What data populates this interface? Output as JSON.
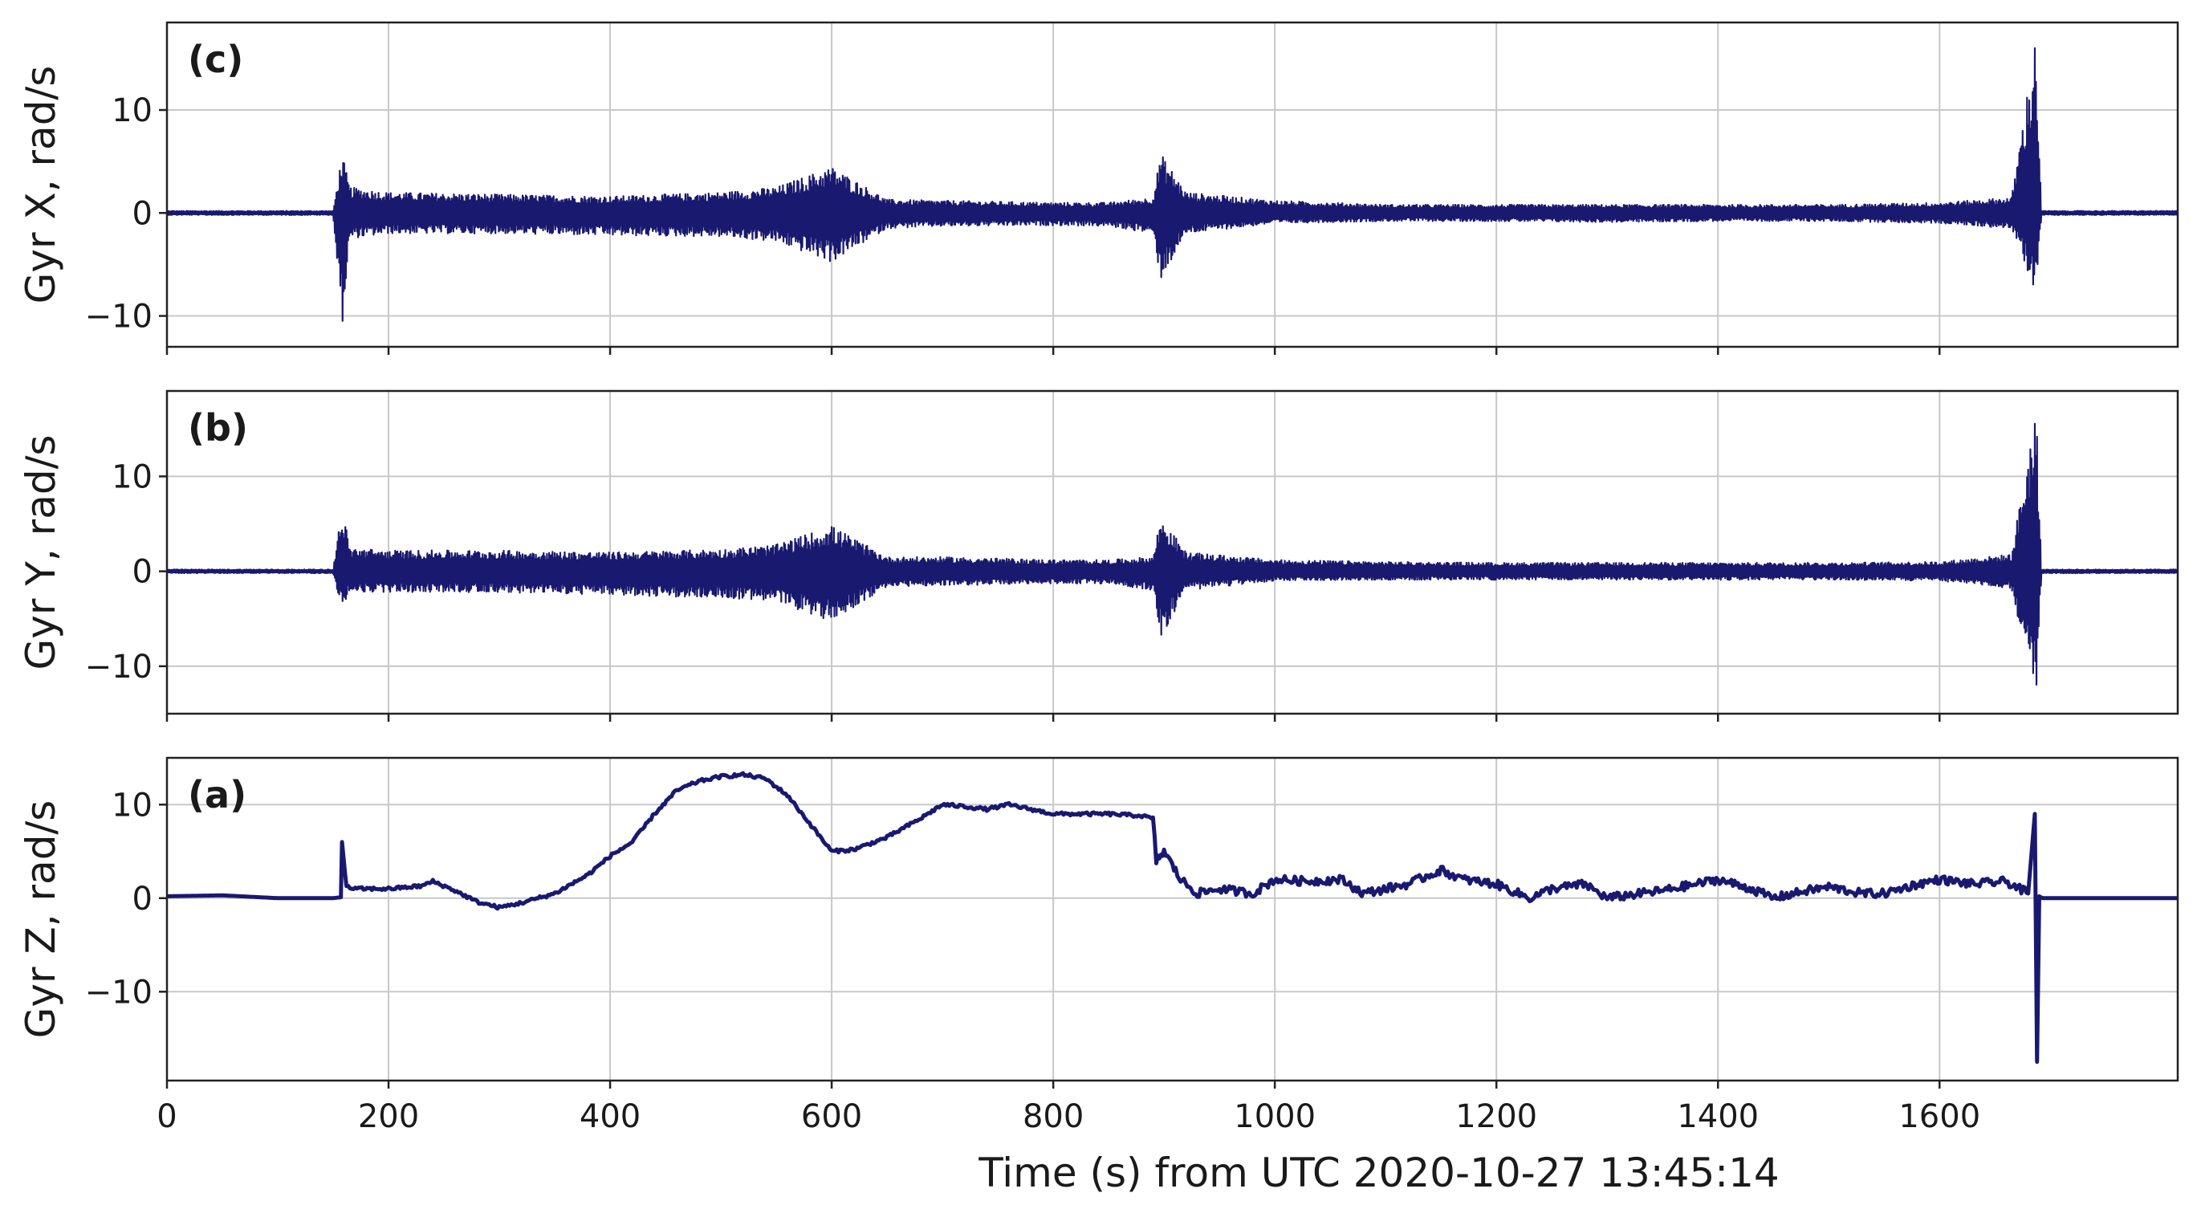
{
  "figure": {
    "xlabel": "Time (s) from UTC 2020-10-27 13:45:14",
    "x_ticks": [
      0,
      200,
      400,
      600,
      800,
      1000,
      1200,
      1400,
      1600
    ],
    "x_tick_labels": [
      "0",
      "200",
      "400",
      "600",
      "800",
      "1000",
      "1200",
      "1400",
      "1600"
    ],
    "line_color": "#191970",
    "grid": true
  },
  "chart_data": [
    {
      "type": "line",
      "panel_label": "(c)",
      "ylabel": "Gyr X, rad/s",
      "xlim": [
        0,
        1815
      ],
      "ylim": [
        -13,
        18.5
      ],
      "y_ticks": [
        -10,
        0,
        10
      ],
      "y_tick_labels": [
        "−10",
        "0",
        "10"
      ],
      "series": [
        {
          "envelope_x": [
            0,
            150,
            158,
            165,
            200,
            300,
            400,
            500,
            550,
            600,
            650,
            700,
            800,
            850,
            890,
            897,
            920,
            1000,
            1100,
            1200,
            1300,
            1400,
            1500,
            1600,
            1665,
            1687,
            1692,
            1700,
            1815
          ],
          "envelope_upper": [
            0.2,
            0.2,
            5.8,
            2.5,
            2.0,
            1.8,
            1.6,
            2.0,
            2.5,
            4.5,
            1.3,
            1.2,
            1.0,
            1.0,
            1.5,
            5.8,
            2.0,
            1.2,
            0.8,
            0.8,
            0.8,
            0.8,
            0.8,
            1.0,
            1.5,
            17.5,
            0.2,
            0.2,
            0.2
          ],
          "envelope_lower": [
            -0.2,
            -0.2,
            -11.2,
            -2.5,
            -2.0,
            -2.0,
            -2.2,
            -2.3,
            -2.8,
            -4.8,
            -1.5,
            -1.3,
            -1.2,
            -1.3,
            -2.0,
            -6.5,
            -2.0,
            -1.0,
            -0.8,
            -0.8,
            -0.9,
            -0.8,
            -0.8,
            -1.0,
            -1.5,
            -7.8,
            -0.2,
            -0.2,
            -0.2
          ]
        }
      ]
    },
    {
      "type": "line",
      "panel_label": "(b)",
      "ylabel": "Gyr Y, rad/s",
      "xlim": [
        0,
        1815
      ],
      "ylim": [
        -15,
        19
      ],
      "y_ticks": [
        -10,
        0,
        10
      ],
      "y_tick_labels": [
        "−10",
        "0",
        "10"
      ],
      "series": [
        {
          "envelope_x": [
            0,
            150,
            158,
            165,
            200,
            300,
            400,
            500,
            550,
            600,
            650,
            700,
            800,
            850,
            890,
            897,
            920,
            1000,
            1100,
            1200,
            1300,
            1400,
            1500,
            1600,
            1665,
            1687,
            1692,
            1700,
            1815
          ],
          "envelope_upper": [
            0.2,
            0.2,
            7.0,
            2.5,
            2.2,
            2.2,
            2.0,
            2.3,
            2.8,
            4.8,
            1.5,
            1.5,
            1.2,
            1.2,
            1.5,
            5.8,
            2.0,
            1.2,
            1.0,
            0.9,
            0.9,
            0.9,
            0.9,
            1.0,
            1.8,
            17.8,
            0.2,
            0.2,
            0.2
          ],
          "envelope_lower": [
            -0.2,
            -0.2,
            -4.0,
            -2.2,
            -2.2,
            -2.2,
            -2.5,
            -2.8,
            -3.2,
            -5.3,
            -1.6,
            -1.5,
            -1.3,
            -1.3,
            -2.0,
            -7.0,
            -2.0,
            -1.0,
            -0.9,
            -0.9,
            -0.9,
            -0.9,
            -0.9,
            -1.0,
            -1.8,
            -13.8,
            -0.2,
            -0.2,
            -0.2
          ]
        }
      ]
    },
    {
      "type": "line",
      "panel_label": "(a)",
      "ylabel": "Gyr Z, rad/s",
      "xlim": [
        0,
        1815
      ],
      "ylim": [
        -19.5,
        15
      ],
      "y_ticks": [
        -10,
        0,
        10
      ],
      "y_tick_labels": [
        "−10",
        "0",
        "10"
      ],
      "series": [
        {
          "x": [
            0,
            50,
            100,
            150,
            157,
            158,
            162,
            170,
            200,
            230,
            240,
            260,
            280,
            300,
            320,
            350,
            380,
            400,
            420,
            440,
            460,
            480,
            500,
            520,
            540,
            560,
            580,
            600,
            620,
            650,
            680,
            700,
            720,
            740,
            760,
            780,
            800,
            820,
            850,
            880,
            890,
            893,
            900,
            915,
            930,
            950,
            980,
            1000,
            1030,
            1060,
            1080,
            1100,
            1120,
            1150,
            1170,
            1200,
            1230,
            1250,
            1280,
            1300,
            1330,
            1350,
            1380,
            1400,
            1430,
            1450,
            1480,
            1500,
            1530,
            1550,
            1580,
            1600,
            1630,
            1660,
            1680,
            1686,
            1688,
            1690,
            1693,
            1700,
            1815
          ],
          "y": [
            0.2,
            0.3,
            0.0,
            0.0,
            0.1,
            6.0,
            1.2,
            1.0,
            1.0,
            1.3,
            1.8,
            0.8,
            -0.4,
            -1.0,
            -0.5,
            0.5,
            2.5,
            4.5,
            6.0,
            9.0,
            11.5,
            12.5,
            13.0,
            13.2,
            12.8,
            11.0,
            8.0,
            5.0,
            5.2,
            6.5,
            8.5,
            10.0,
            9.8,
            9.5,
            10.0,
            9.5,
            9.0,
            9.0,
            9.0,
            8.8,
            8.5,
            4.0,
            5.0,
            2.0,
            0.5,
            1.0,
            0.5,
            2.0,
            1.8,
            2.0,
            0.5,
            1.0,
            1.5,
            3.0,
            2.0,
            1.5,
            0.0,
            1.0,
            1.5,
            0.0,
            0.5,
            0.8,
            1.5,
            2.0,
            1.0,
            0.0,
            0.8,
            1.2,
            0.5,
            0.5,
            1.5,
            2.0,
            1.5,
            1.8,
            0.5,
            9.0,
            -17.5,
            0.2,
            0.0,
            0.0,
            0.0
          ]
        }
      ]
    }
  ]
}
